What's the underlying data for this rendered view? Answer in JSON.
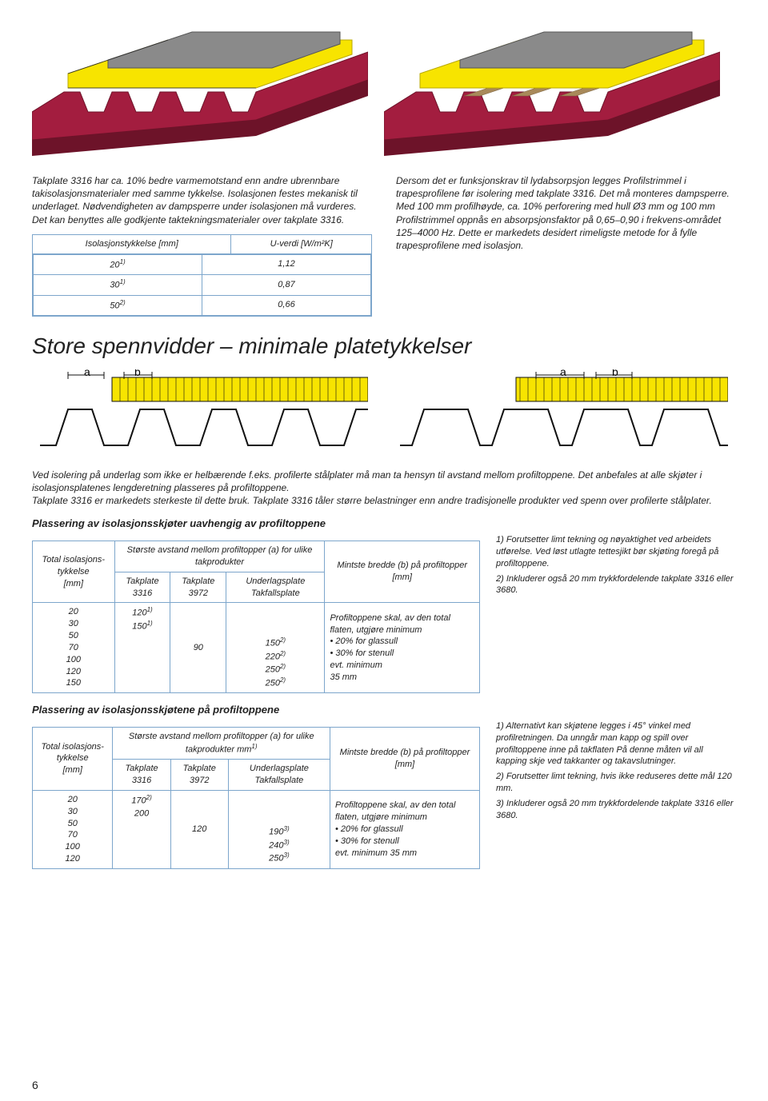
{
  "hero": {
    "colors": {
      "roof_top": "#8a8a8a",
      "insulation": "#f7e400",
      "steel": "#a31d3f",
      "steel_dark": "#6d1329",
      "wood": "#a8895a",
      "outline": "#2b2b2b"
    }
  },
  "left_para": "Takplate 3316 har ca. 10% bedre varmemotstand enn andre ubrennbare takisolasjonsmaterialer med samme tykkelse. Isolasjonen festes mekanisk til underlaget. Nødvendigheten av dampsperre under isolasjonen må vurderes. Det kan benyttes alle godkjente taktekningsmaterialer over takplate 3316.",
  "right_para": "Dersom det er funksjonskrav til lydabsorpsjon legges Profilstrimmel i trapesprofilene før isolering med takplate 3316. Det må monteres dampsperre.\nMed 100 mm profilhøyde, ca. 10% perforering med hull Ø3 mm og 100 mm Profilstrimmel oppnås en absorpsjonsfaktor på 0,65–0,90 i frekvens-området 125–4000 Hz. Dette er markedets desidert rimeligste metode for å fylle trapesprofilene med isolasjon.",
  "uvalue_table": {
    "col1": "Isolasjonstykkelse [mm]",
    "col2": "U-verdi [W/m²K]",
    "rows": [
      {
        "t": "20",
        "sup": "1)",
        "u": "1,12"
      },
      {
        "t": "30",
        "sup": "1)",
        "u": "0,87"
      },
      {
        "t": "50",
        "sup": "2)",
        "u": "0,66"
      }
    ]
  },
  "section_title": "Store spennvidder – minimale platetykkelser",
  "profile": {
    "label_a": "a",
    "label_b": "b",
    "insulation_color": "#f7e400",
    "outline": "#111"
  },
  "mid_para": "Ved isolering på underlag som ikke er helbærende f.eks. profilerte stålplater må man ta hensyn til avstand mellom profiltoppene. Det anbefales at alle skjøter i isolasjonsplatenes lengderetning plasseres på profiltoppene.\nTakplate 3316 er markedets sterkeste til dette bruk. Takplate 3316 tåler større belastninger enn andre tradisjonelle produkter ved spenn over profilerte stålplater.",
  "table1": {
    "title": "Plassering av isolasjonsskjøter uavhengig av profiltoppene",
    "h_total": "Total isolasjons-tykkelse",
    "h_total_unit": "[mm]",
    "h_span": "Største avstand mellom profiltopper (a) for ulike takprodukter",
    "h_c1": "Takplate 3316",
    "h_c2": "Takplate 3972",
    "h_c3": "Underlagsplate Takfallsplate",
    "h_minb": "Mintste bredde (b) på profiltopper",
    "h_minb_unit": "[mm]",
    "col_total": [
      "20",
      "30",
      "50",
      "70",
      "100",
      "120",
      "150"
    ],
    "col_3316": [
      {
        "v": "120",
        "s": "1)"
      },
      {
        "v": "150",
        "s": "1)"
      }
    ],
    "col_3972": "90",
    "col_under": [
      {
        "v": "150",
        "s": "2)"
      },
      {
        "v": "220",
        "s": "2)"
      },
      {
        "v": "250",
        "s": "2)"
      },
      {
        "v": "250",
        "s": "2)"
      }
    ],
    "req": "Profiltoppene skal, av den total flaten, utgjøre minimum\n• 20% for glassull\n• 30% for stenull\nevt. minimum\n35 mm",
    "fn1": "1) Forutsetter limt tekning og nøyaktighet ved arbeidets utførelse. Ved løst utlagte tettesjikt bør skjøting foregå på profiltoppene.",
    "fn2": "2) Inkluderer også 20 mm trykkfordelende takplate 3316 eller 3680."
  },
  "table2": {
    "title": "Plassering av isolasjonsskjøtene på profiltoppene",
    "h_span": "Største avstand mellom profiltopper (a) for ulike takprodukter mm",
    "h_span_sup": "1)",
    "col_total": [
      "20",
      "30",
      "50",
      "70",
      "100",
      "120"
    ],
    "col_3316": [
      {
        "v": "170",
        "s": "2)"
      },
      {
        "v": "200",
        "s": ""
      }
    ],
    "col_3972": "120",
    "col_under": [
      {
        "v": "190",
        "s": "3)"
      },
      {
        "v": "240",
        "s": "3)"
      },
      {
        "v": "250",
        "s": "3)"
      }
    ],
    "req": "Profiltoppene skal, av den total flaten, utgjøre minimum\n• 20% for glassull\n• 30% for stenull\nevt. minimum 35 mm",
    "fn1": "1) Alternativt kan skjøtene legges i 45° vinkel med profilretningen. Da unngår man kapp og spill over profiltoppene inne på takflaten På denne måten vil all kapping skje ved takkanter og takavslutninger.",
    "fn2": "2) Forutsetter limt tekning, hvis ikke reduseres dette mål 120 mm.",
    "fn3": "3) Inkluderer også 20 mm trykkfordelende takplate 3316 eller 3680."
  },
  "page_number": "6"
}
